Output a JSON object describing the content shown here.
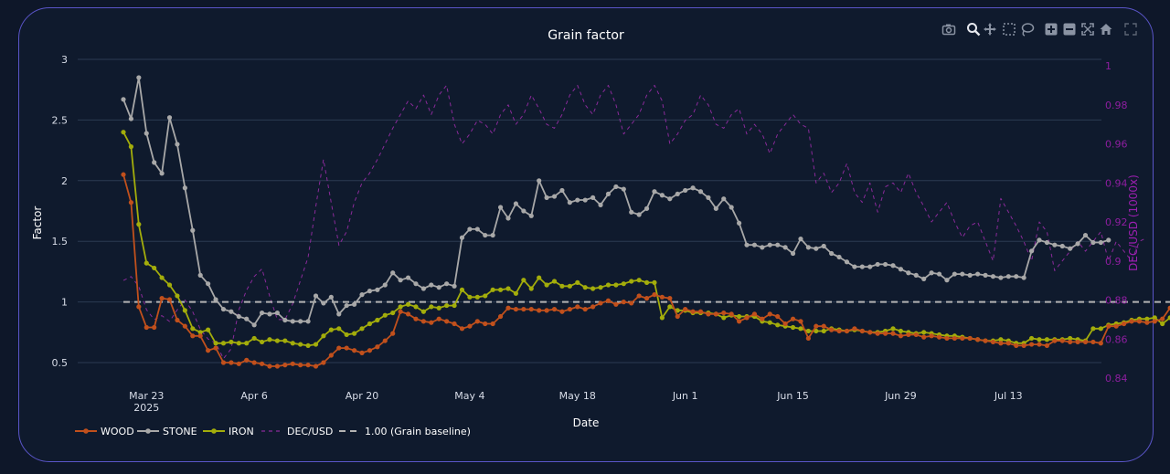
{
  "chart_data": {
    "type": "line",
    "title": "Grain factor",
    "xlabel": "Date",
    "ylabel": "Factor",
    "y2label": "DEC/USD (1000x)",
    "ylim": [
      0.4,
      3.0
    ],
    "y2lim": [
      0.84,
      1.0
    ],
    "yticks": [
      "0.5",
      "1",
      "1.5",
      "2",
      "2.5",
      "3"
    ],
    "y2ticks": [
      "0.84",
      "0.86",
      "0.88",
      "0.9",
      "0.92",
      "0.94",
      "0.96",
      "0.98",
      "1"
    ],
    "xticks": [
      {
        "label": "Mar 23",
        "sub": "2025",
        "x": "2025-03-23"
      },
      {
        "label": "Apr 6",
        "sub": "",
        "x": "2025-04-06"
      },
      {
        "label": "Apr 20",
        "sub": "",
        "x": "2025-04-20"
      },
      {
        "label": "May 4",
        "sub": "",
        "x": "2025-05-04"
      },
      {
        "label": "May 18",
        "sub": "",
        "x": "2025-05-18"
      },
      {
        "label": "Jun 1",
        "sub": "",
        "x": "2025-06-01"
      },
      {
        "label": "Jun 15",
        "sub": "",
        "x": "2025-06-15"
      },
      {
        "label": "Jun 29",
        "sub": "",
        "x": "2025-06-29"
      },
      {
        "label": "Jul 13",
        "sub": "",
        "x": "2025-07-13"
      }
    ],
    "xstart": "2025-03-20",
    "xstep_days": 1,
    "series": [
      {
        "name": "WOOD",
        "color": "#c1501c",
        "axis": "y",
        "markers": true,
        "values": [
          2.05,
          1.82,
          0.96,
          0.79,
          0.79,
          1.03,
          1.02,
          0.85,
          0.8,
          0.72,
          0.72,
          0.6,
          0.62,
          0.5,
          0.5,
          0.49,
          0.52,
          0.5,
          0.49,
          0.47,
          0.47,
          0.48,
          0.49,
          0.48,
          0.48,
          0.47,
          0.5,
          0.56,
          0.62,
          0.62,
          0.6,
          0.58,
          0.6,
          0.63,
          0.68,
          0.74,
          0.92,
          0.9,
          0.86,
          0.84,
          0.83,
          0.86,
          0.84,
          0.82,
          0.78,
          0.8,
          0.84,
          0.82,
          0.82,
          0.88,
          0.95,
          0.94,
          0.94,
          0.94,
          0.93,
          0.93,
          0.94,
          0.92,
          0.94,
          0.96,
          0.94,
          0.96,
          0.99,
          1.01,
          0.98,
          1.0,
          0.99,
          1.05,
          1.03,
          1.06,
          1.04,
          1.03,
          0.88,
          0.94,
          0.92,
          0.92,
          0.9,
          0.9,
          0.91,
          0.9,
          0.84,
          0.87,
          0.9,
          0.86,
          0.9,
          0.88,
          0.82,
          0.86,
          0.84,
          0.7,
          0.8,
          0.8,
          0.77,
          0.76,
          0.76,
          0.78,
          0.76,
          0.75,
          0.74,
          0.74,
          0.74,
          0.72,
          0.73,
          0.73,
          0.71,
          0.72,
          0.71,
          0.7,
          0.7,
          0.7,
          0.7,
          0.69,
          0.68,
          0.67,
          0.66,
          0.66,
          0.64,
          0.64,
          0.65,
          0.65,
          0.64,
          0.68,
          0.68,
          0.67,
          0.67,
          0.67,
          0.67,
          0.66,
          0.8,
          0.8,
          0.82,
          0.84,
          0.84,
          0.83,
          0.84,
          0.86,
          0.95,
          0.85,
          1.0
        ]
      },
      {
        "name": "STONE",
        "color": "#a8a8a8",
        "axis": "y",
        "markers": true,
        "values": [
          2.67,
          2.51,
          2.85,
          2.39,
          2.15,
          2.06,
          2.52,
          2.3,
          1.94,
          1.59,
          1.22,
          1.15,
          1.02,
          0.94,
          0.92,
          0.88,
          0.86,
          0.81,
          0.91,
          0.9,
          0.91,
          0.85,
          0.84,
          0.84,
          0.84,
          1.05,
          0.99,
          1.04,
          0.9,
          0.97,
          0.98,
          1.06,
          1.09,
          1.1,
          1.14,
          1.24,
          1.18,
          1.2,
          1.15,
          1.11,
          1.14,
          1.12,
          1.15,
          1.13,
          1.53,
          1.6,
          1.6,
          1.55,
          1.55,
          1.78,
          1.69,
          1.81,
          1.75,
          1.71,
          2.0,
          1.86,
          1.87,
          1.92,
          1.82,
          1.84,
          1.84,
          1.86,
          1.8,
          1.89,
          1.95,
          1.93,
          1.74,
          1.72,
          1.77,
          1.91,
          1.88,
          1.85,
          1.89,
          1.92,
          1.94,
          1.91,
          1.86,
          1.77,
          1.85,
          1.78,
          1.65,
          1.47,
          1.47,
          1.45,
          1.47,
          1.47,
          1.45,
          1.4,
          1.52,
          1.45,
          1.44,
          1.46,
          1.4,
          1.37,
          1.33,
          1.29,
          1.29,
          1.29,
          1.31,
          1.31,
          1.3,
          1.27,
          1.24,
          1.22,
          1.19,
          1.24,
          1.23,
          1.18,
          1.23,
          1.23,
          1.22,
          1.23,
          1.22,
          1.21,
          1.2,
          1.21,
          1.21,
          1.2,
          1.42,
          1.51,
          1.49,
          1.47,
          1.46,
          1.44,
          1.48,
          1.55,
          1.49,
          1.49,
          1.51
        ]
      },
      {
        "name": "IRON",
        "color": "#a3ad0b",
        "axis": "y",
        "markers": true,
        "values": [
          2.4,
          2.28,
          1.64,
          1.32,
          1.28,
          1.2,
          1.14,
          1.05,
          0.93,
          0.78,
          0.75,
          0.77,
          0.66,
          0.66,
          0.67,
          0.66,
          0.66,
          0.7,
          0.67,
          0.69,
          0.68,
          0.68,
          0.66,
          0.65,
          0.64,
          0.65,
          0.72,
          0.77,
          0.78,
          0.73,
          0.74,
          0.78,
          0.82,
          0.85,
          0.89,
          0.91,
          0.96,
          0.98,
          0.96,
          0.92,
          0.96,
          0.95,
          0.97,
          0.97,
          1.1,
          1.04,
          1.04,
          1.05,
          1.1,
          1.1,
          1.11,
          1.07,
          1.18,
          1.11,
          1.2,
          1.14,
          1.17,
          1.13,
          1.13,
          1.16,
          1.12,
          1.11,
          1.12,
          1.14,
          1.14,
          1.15,
          1.17,
          1.18,
          1.16,
          1.16,
          0.87,
          0.96,
          0.93,
          0.93,
          0.91,
          0.91,
          0.91,
          0.9,
          0.87,
          0.89,
          0.88,
          0.88,
          0.88,
          0.84,
          0.83,
          0.81,
          0.8,
          0.79,
          0.78,
          0.76,
          0.76,
          0.76,
          0.78,
          0.77,
          0.76,
          0.77,
          0.76,
          0.75,
          0.75,
          0.76,
          0.78,
          0.76,
          0.75,
          0.74,
          0.75,
          0.74,
          0.73,
          0.72,
          0.72,
          0.71,
          0.7,
          0.69,
          0.68,
          0.68,
          0.69,
          0.68,
          0.66,
          0.66,
          0.7,
          0.69,
          0.69,
          0.69,
          0.69,
          0.7,
          0.69,
          0.68,
          0.78,
          0.78,
          0.81,
          0.82,
          0.83,
          0.85,
          0.86,
          0.86,
          0.87,
          0.82,
          0.87
        ]
      },
      {
        "name": "DEC/USD",
        "color": "#8a2a9a",
        "axis": "y2",
        "dash": "4,4",
        "markers": false,
        "values": [
          0.89,
          0.892,
          0.887,
          0.875,
          0.87,
          0.872,
          0.869,
          0.875,
          0.88,
          0.874,
          0.865,
          0.86,
          0.858,
          0.85,
          0.855,
          0.875,
          0.885,
          0.892,
          0.896,
          0.882,
          0.87,
          0.87,
          0.878,
          0.89,
          0.902,
          0.928,
          0.952,
          0.93,
          0.908,
          0.915,
          0.93,
          0.94,
          0.945,
          0.952,
          0.96,
          0.968,
          0.975,
          0.982,
          0.978,
          0.985,
          0.975,
          0.985,
          0.99,
          0.97,
          0.96,
          0.965,
          0.972,
          0.97,
          0.965,
          0.975,
          0.98,
          0.97,
          0.975,
          0.985,
          0.978,
          0.97,
          0.968,
          0.975,
          0.985,
          0.99,
          0.98,
          0.975,
          0.985,
          0.99,
          0.98,
          0.965,
          0.97,
          0.975,
          0.985,
          0.99,
          0.982,
          0.96,
          0.965,
          0.972,
          0.975,
          0.985,
          0.98,
          0.97,
          0.968,
          0.975,
          0.978,
          0.965,
          0.97,
          0.965,
          0.955,
          0.965,
          0.97,
          0.975,
          0.97,
          0.968,
          0.94,
          0.945,
          0.935,
          0.94,
          0.95,
          0.935,
          0.93,
          0.94,
          0.925,
          0.938,
          0.94,
          0.935,
          0.945,
          0.935,
          0.928,
          0.92,
          0.925,
          0.93,
          0.92,
          0.912,
          0.918,
          0.92,
          0.91,
          0.9,
          0.932,
          0.925,
          0.918,
          0.91,
          0.9,
          0.92,
          0.915,
          0.895,
          0.9,
          0.905,
          0.91,
          0.905,
          0.91,
          0.915,
          0.9,
          0.91,
          0.905,
          0.9,
          0.91,
          0.912
        ]
      },
      {
        "name": "1.00 (Grain baseline)",
        "color": "#b4b4b4",
        "axis": "y",
        "dash": "7,5",
        "markers": false,
        "constant": 1.0
      }
    ],
    "legend_position": "bottom-left",
    "grid": true
  },
  "modebar": [
    "camera-icon",
    "zoom-icon",
    "pan-icon",
    "box-select-icon",
    "lasso-icon",
    "zoom-in-icon",
    "zoom-out-icon",
    "autoscale-icon",
    "home-icon",
    "fullscreen-icon"
  ]
}
